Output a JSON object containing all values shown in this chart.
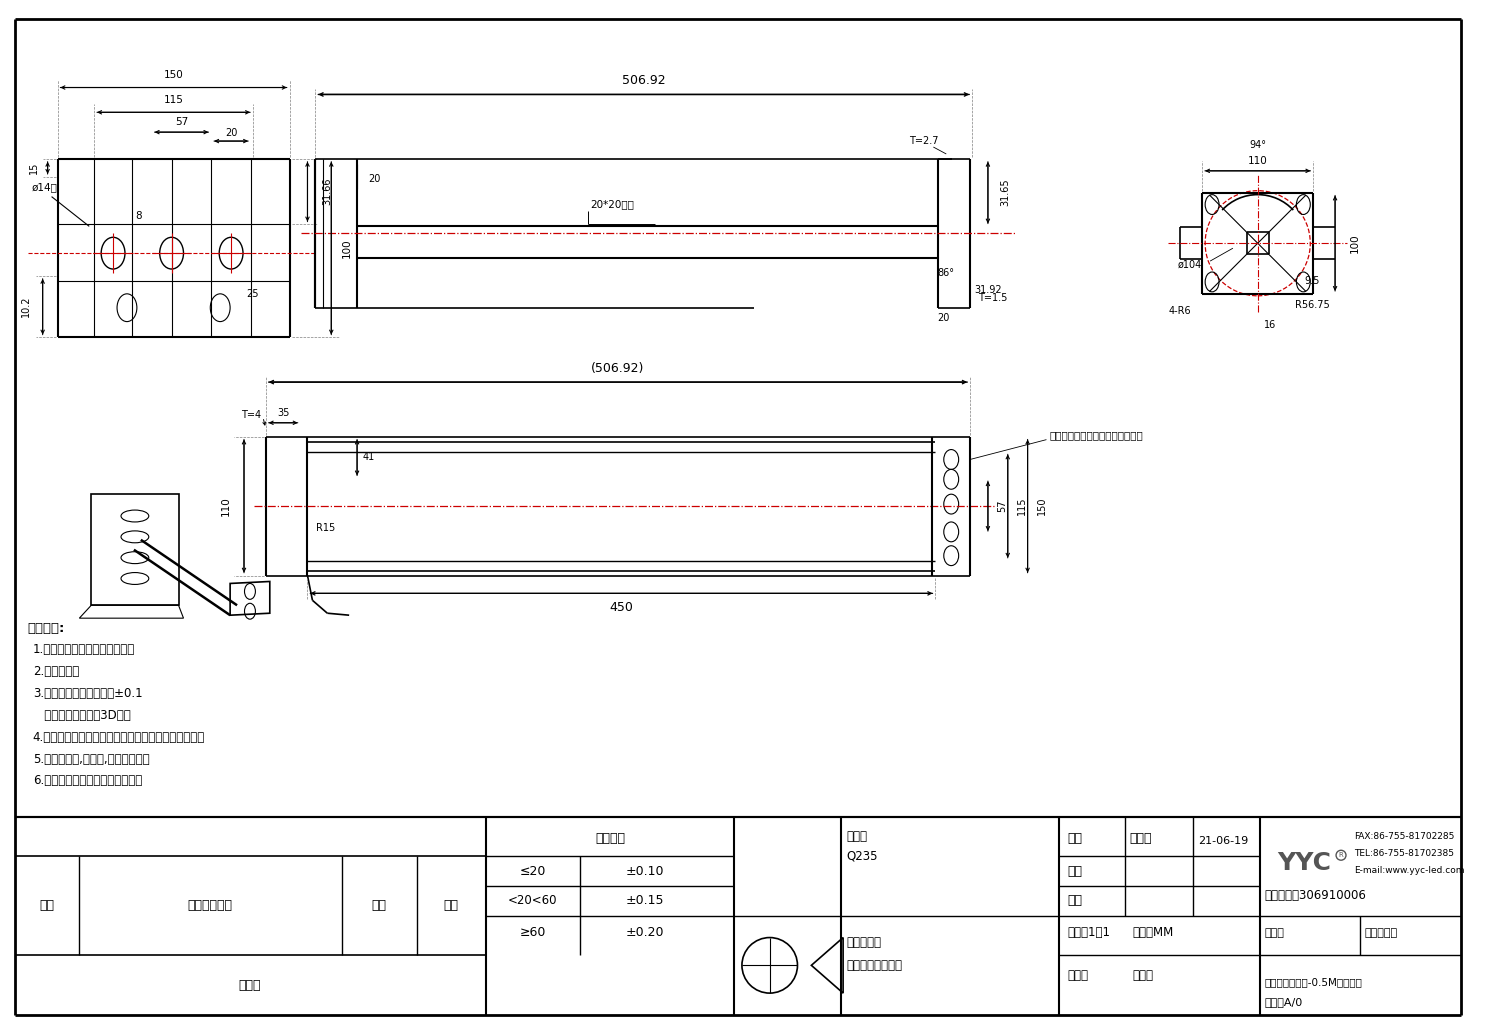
{
  "bg_color": "#ffffff",
  "line_color": "#000000",
  "red_color": "#cc0000",
  "tech_req_lines": [
    "1.未注尺寸公差按图表尺寸公差",
    "2.锐边倒钝；",
    "3.未注孔距牙距公差均为±0.1",
    "   其余未标注尺寸按3D尺寸",
    "4.各连接件焊接处必须满焊且焊接牢固平整光滑牢固；",
    "5.外观无变形,无色差,无刮花等缺陷",
    "6.表面处理：喷黑色砂纹户外粉；"
  ],
  "draw_name": "阳启军",
  "draw_date": "21-06-19",
  "material": "Q235",
  "surface": "喷黑色砂纹户外粉",
  "scale": "比例：1：1",
  "unit": "单位：MM",
  "version": "版本：A/0",
  "part_no": "零件料号：306910006",
  "product_name": "投光灯墙装支架-0.5M（黑色）",
  "company_fax": "FAX:86-755-81702285",
  "company_tel": "TEL:86-755-81702385",
  "company_email": "E-mail:www.yyc-led.com"
}
